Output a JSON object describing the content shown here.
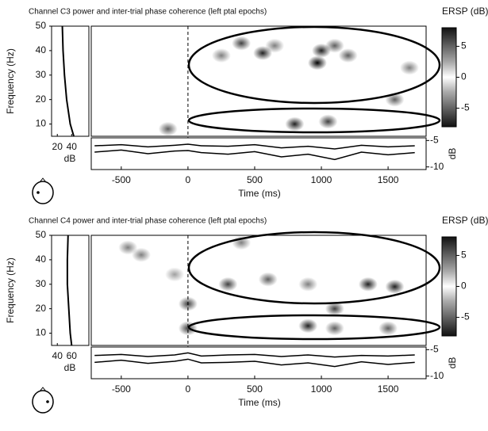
{
  "chart_data": [
    {
      "type": "ersp",
      "title": "Channel C3 power and inter-trial phase coherence (left ptal epochs)",
      "colorbar_title": "ERSP (dB)",
      "xlabel": "Time (ms)",
      "ylabel": "Frequency (Hz)",
      "xlim": [
        -725,
        1785
      ],
      "xticks": [
        -500,
        0,
        500,
        1000,
        1500
      ],
      "ylim": [
        5,
        50
      ],
      "yticks": [
        10,
        20,
        30,
        40,
        50
      ],
      "clim": [
        -8,
        8
      ],
      "cticks": [
        5,
        0,
        -5
      ],
      "x": [
        400,
        560,
        970,
        1000,
        1100,
        800,
        1050,
        -150,
        1550,
        1660,
        650,
        250,
        1200
      ],
      "y": [
        43,
        39,
        35,
        40,
        42,
        10,
        11,
        8,
        20,
        33,
        42,
        38,
        38
      ],
      "values": [
        -6,
        -7,
        -8,
        -7,
        -5,
        -7,
        -6,
        -5,
        -5,
        -4,
        -4,
        -4,
        -5
      ],
      "power": {
        "freqs": [
          5,
          10,
          20,
          30,
          40,
          50
        ],
        "values": [
          43,
          38,
          33,
          30,
          28,
          27
        ],
        "xlim": [
          12,
          64
        ],
        "xticks": [
          20,
          40
        ],
        "label": "dB"
      },
      "strip": {
        "y2label": "dB",
        "y2lim": [
          -10.5,
          -4.5
        ],
        "y2ticks": [
          -5,
          -10
        ],
        "times": [
          -700,
          -500,
          -300,
          -100,
          0,
          100,
          300,
          500,
          700,
          900,
          1100,
          1300,
          1500,
          1700
        ],
        "traces": [
          {
            "values": [
              -6,
              -5.8,
              -6.2,
              -5.9,
              -5.7,
              -6,
              -6.1,
              -5.8,
              -6.4,
              -6.1,
              -6.6,
              -5.9,
              -6.2,
              -6
            ]
          },
          {
            "values": [
              -7.2,
              -6.8,
              -7.5,
              -7,
              -6.9,
              -7.3,
              -7.6,
              -7.1,
              -8.1,
              -7.6,
              -8.6,
              -7.2,
              -7.7,
              -7.3
            ]
          }
        ]
      }
    },
    {
      "type": "ersp",
      "title": "Channel C4 power and inter-trial phase coherence (left ptal epochs)",
      "colorbar_title": "ERSP (dB)",
      "xlabel": "Time (ms)",
      "ylabel": "Frequency (Hz)",
      "xlim": [
        -725,
        1785
      ],
      "xticks": [
        -500,
        0,
        500,
        1000,
        1500
      ],
      "ylim": [
        5,
        50
      ],
      "yticks": [
        10,
        20,
        30,
        40,
        50
      ],
      "clim": [
        -8,
        8
      ],
      "cticks": [
        5,
        0,
        -5
      ],
      "x": [
        -450,
        -350,
        -100,
        0,
        0,
        300,
        600,
        900,
        1100,
        900,
        1350,
        1550,
        1100,
        1500,
        400
      ],
      "y": [
        45,
        42,
        34,
        22,
        12,
        30,
        32,
        30,
        20,
        13,
        30,
        29,
        12,
        12,
        47
      ],
      "values": [
        -4,
        -4,
        -3,
        -6,
        -6,
        -6,
        -5,
        -4,
        -6,
        -7,
        -7,
        -7,
        -5,
        -5,
        -4
      ],
      "power": {
        "freqs": [
          5,
          10,
          20,
          30,
          40,
          50
        ],
        "values": [
          60,
          58,
          56,
          54,
          54,
          55
        ],
        "xlim": [
          32,
          84
        ],
        "xticks": [
          40,
          60
        ],
        "label": "dB"
      },
      "strip": {
        "y2label": "dB",
        "y2lim": [
          -10.5,
          -4.5
        ],
        "y2ticks": [
          -5,
          -10
        ],
        "times": [
          -700,
          -500,
          -300,
          -100,
          0,
          100,
          300,
          500,
          700,
          900,
          1100,
          1300,
          1500,
          1700
        ],
        "traces": [
          {
            "values": [
              -6.1,
              -5.9,
              -6.3,
              -6,
              -5.6,
              -6.2,
              -6,
              -5.9,
              -6.3,
              -6,
              -6.4,
              -6.1,
              -6.2,
              -6
            ]
          },
          {
            "values": [
              -7.4,
              -7,
              -7.6,
              -7.2,
              -6.8,
              -7.5,
              -7.4,
              -7.2,
              -7.9,
              -7.5,
              -8.2,
              -7.3,
              -7.8,
              -7.4
            ]
          }
        ]
      }
    }
  ]
}
